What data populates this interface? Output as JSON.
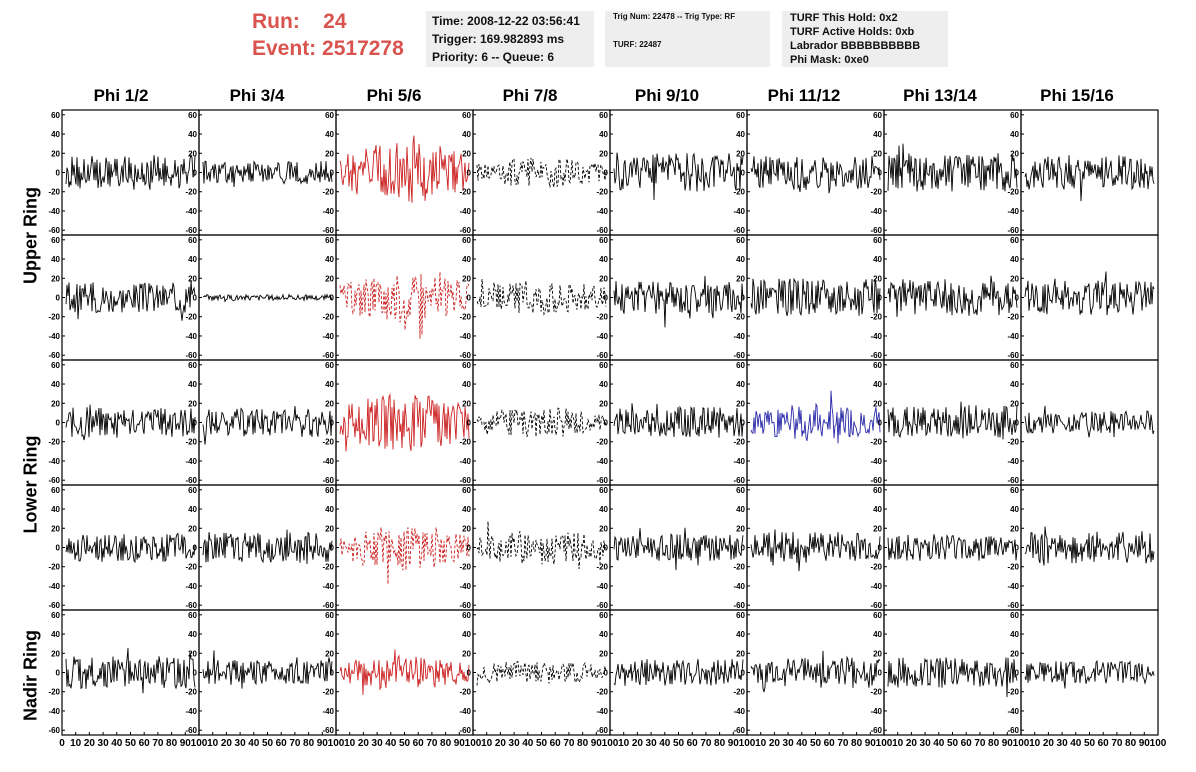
{
  "run": {
    "run_label": "Run:",
    "run_value": "24",
    "event_label": "Event:",
    "event_value": "2517278"
  },
  "time_box": {
    "time": "Time: 2008-12-22 03:56:41",
    "trigger": "Trigger: 169.982893 ms",
    "priority": "Priority: 6 -- Queue: 6"
  },
  "trig_box": {
    "trig": "Trig Num: 22478 -- Trig Type: RF",
    "turf": "TURF: 22487"
  },
  "turf_box": {
    "hold": "TURF This Hold: 0x2",
    "active": "TURF Active Holds: 0xb",
    "labrador": "Labrador BBBBBBBBBB",
    "phimask": "Phi Mask: 0xe0"
  },
  "phi_headers": [
    "Phi 1/2",
    "Phi 3/4",
    "Phi 5/6",
    "Phi 7/8",
    "Phi 9/10",
    "Phi 11/12",
    "Phi 13/14",
    "Phi 15/16"
  ],
  "ring_labels": [
    "Upper Ring",
    "Lower Ring",
    "Nadir Ring"
  ],
  "colors": {
    "normal": "#000000",
    "triggered": "#cc2222",
    "highlight": "#2a2aa8",
    "panel_bg": "#eeeeee",
    "run_text": "#d9534f"
  },
  "chart_data": {
    "type": "line",
    "rows": 5,
    "cols": 8,
    "ylim": [
      -65,
      65
    ],
    "xlim": [
      0,
      100
    ],
    "yticks": [
      "60",
      "40",
      "20",
      "0",
      "-20",
      "-40",
      "-60"
    ],
    "xticks": [
      "0",
      "10",
      "20",
      "30",
      "40",
      "50",
      "60",
      "70",
      "80",
      "90",
      "100"
    ],
    "amplitudes": [
      [
        18,
        12,
        32,
        16,
        20,
        17,
        20,
        18
      ],
      [
        16,
        3,
        26,
        18,
        17,
        20,
        19,
        18
      ],
      [
        16,
        15,
        30,
        16,
        16,
        20,
        18,
        12
      ],
      [
        15,
        16,
        24,
        18,
        14,
        16,
        14,
        17
      ],
      [
        17,
        13,
        18,
        13,
        14,
        16,
        16,
        12
      ]
    ],
    "styles": [
      [
        "normal",
        "normal",
        "triggered",
        "dashed",
        "normal",
        "normal",
        "normal",
        "normal"
      ],
      [
        "normal",
        "normal",
        "triggered-dashed",
        "dashed",
        "normal",
        "normal",
        "normal",
        "normal"
      ],
      [
        "normal",
        "normal",
        "triggered",
        "dashed",
        "normal",
        "highlight",
        "normal",
        "normal"
      ],
      [
        "normal",
        "normal",
        "triggered-dashed",
        "dashed",
        "normal",
        "normal",
        "normal",
        "normal"
      ],
      [
        "normal",
        "normal",
        "triggered",
        "dashed",
        "normal",
        "normal",
        "normal",
        "normal"
      ]
    ]
  }
}
